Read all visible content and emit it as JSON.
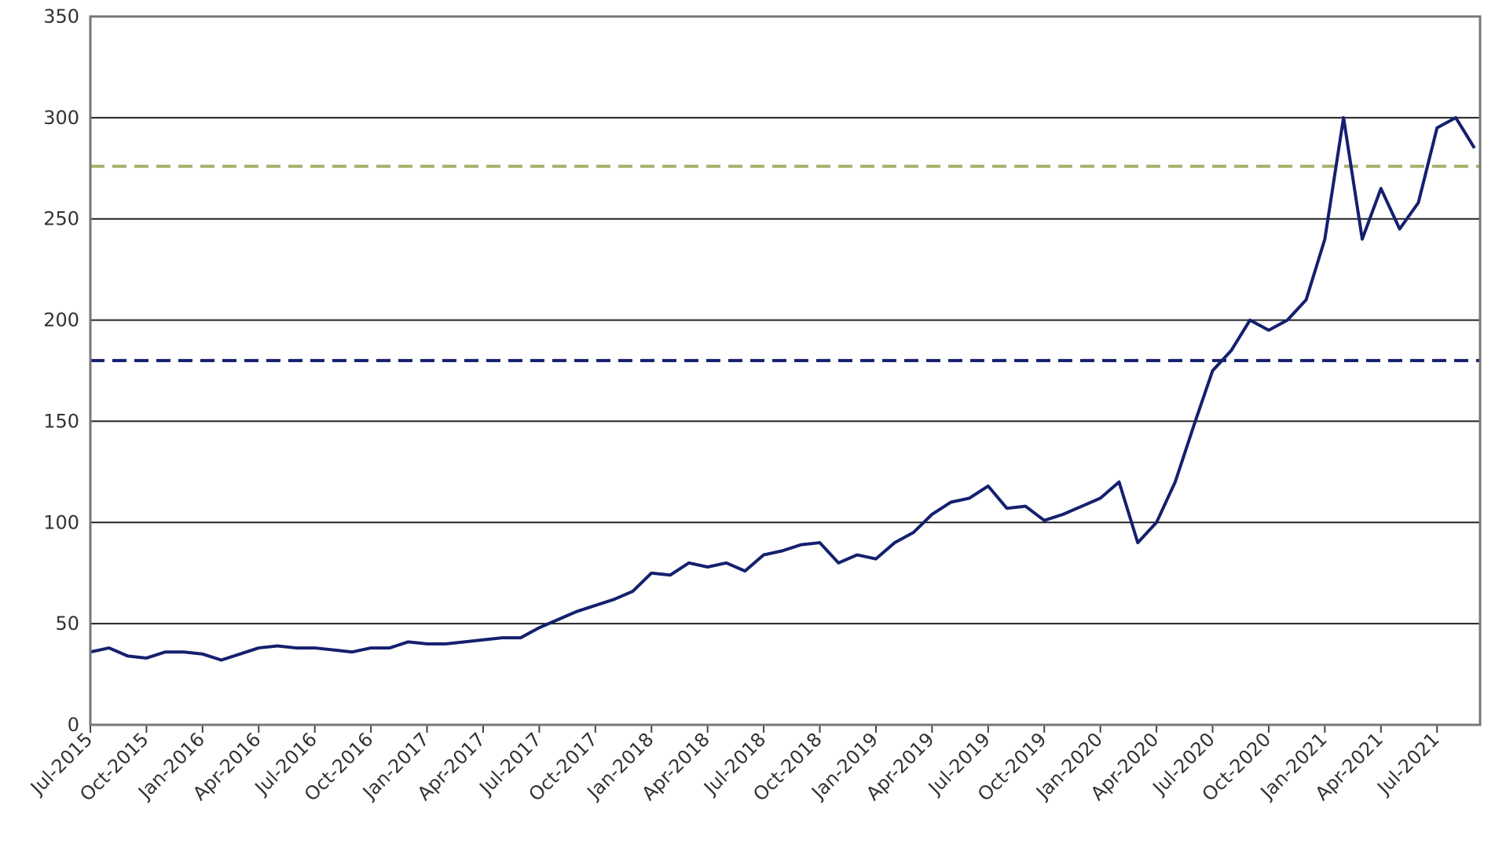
{
  "chart_data": {
    "type": "line",
    "categories": [
      "Jul-2015",
      null,
      null,
      "Oct-2015",
      null,
      null,
      "Jan-2016",
      null,
      null,
      "Apr-2016",
      null,
      null,
      "Jul-2016",
      null,
      null,
      "Oct-2016",
      null,
      null,
      "Jan-2017",
      null,
      null,
      "Apr-2017",
      null,
      null,
      "Jul-2017",
      null,
      null,
      "Oct-2017",
      null,
      null,
      "Jan-2018",
      null,
      null,
      "Apr-2018",
      null,
      null,
      "Jul-2018",
      null,
      null,
      "Oct-2018",
      null,
      null,
      "Jan-2019",
      null,
      null,
      "Apr-2019",
      null,
      null,
      "Jul-2019",
      null,
      null,
      "Oct-2019",
      null,
      null,
      "Jan-2020",
      null,
      null,
      "Apr-2020",
      null,
      null,
      "Jul-2020",
      null,
      null,
      "Oct-2020",
      null,
      null,
      "Jan-2021",
      null,
      null,
      "Apr-2021",
      null,
      null,
      "Jul-2021",
      null,
      null
    ],
    "series": [
      {
        "color": "#14206e",
        "values": [
          36,
          38,
          34,
          33,
          36,
          36,
          35,
          32,
          35,
          38,
          39,
          38,
          38,
          37,
          36,
          38,
          38,
          41,
          40,
          40,
          41,
          42,
          43,
          43,
          48,
          52,
          56,
          59,
          62,
          66,
          75,
          74,
          80,
          78,
          80,
          76,
          84,
          86,
          89,
          90,
          80,
          84,
          82,
          90,
          95,
          104,
          110,
          112,
          118,
          107,
          108,
          101,
          104,
          108,
          112,
          120,
          90,
          100,
          120,
          148,
          175,
          185,
          200,
          195,
          200,
          210,
          240,
          300,
          240,
          265,
          245,
          258,
          295,
          300,
          285
        ]
      }
    ],
    "reference_lines": [
      {
        "value": 276,
        "color": "#a4b36a"
      },
      {
        "value": 180,
        "color": "#14206e"
      }
    ],
    "ylim": [
      0,
      350
    ],
    "yticks": [
      0,
      50,
      100,
      150,
      200,
      250,
      300,
      350
    ],
    "grid": true
  }
}
